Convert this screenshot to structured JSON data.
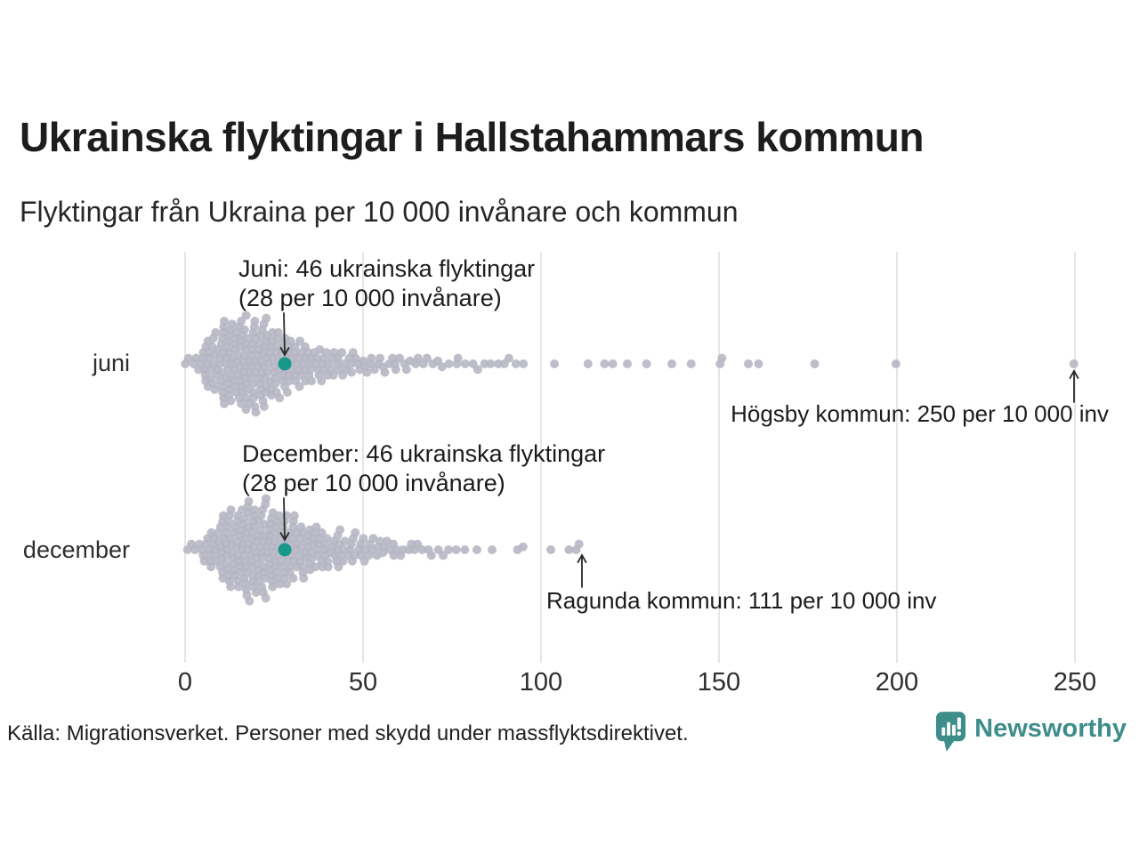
{
  "header": {
    "title": "Ukrainska flyktingar i Hallstahammars kommun",
    "subtitle": "Flyktingar från Ukraina per 10 000 invånare och kommun"
  },
  "chart_data": {
    "type": "beeswarm",
    "title": "Ukrainska flyktingar i Hallstahammars kommun",
    "subtitle": "Flyktingar från Ukraina per 10 000 invånare och kommun",
    "unit": "flyktingar från Ukraina per 10 000 invånare, en punkt per kommun",
    "x_axis": {
      "min": 0,
      "max": 255,
      "ticks": [
        0,
        50,
        100,
        150,
        200,
        250
      ],
      "gridlines": "vertical"
    },
    "legend": "none",
    "rows": [
      {
        "label": "juni",
        "highlight": {
          "municipality": "Hallstahammars kommun",
          "refugees": 46,
          "value_per_10000": 28
        },
        "annotation": {
          "line1": "Juni: 46 ukrainska flyktingar",
          "line2": "(28 per 10 000 invånare)"
        },
        "max_annotation": {
          "text": "Högsby kommun: 250 per 10 000 inv",
          "municipality": "Högsby kommun",
          "value_per_10000": 250
        },
        "distribution_estimate": {
          "bin_width": 5,
          "start": 0,
          "counts": [
            6,
            26,
            40,
            42,
            38,
            28,
            20,
            15,
            11,
            9,
            7,
            6,
            5,
            4,
            3
          ]
        },
        "tail_values_estimate": [
          76,
          77,
          79,
          81,
          82,
          84,
          86,
          88,
          90,
          91,
          93,
          95,
          104,
          113,
          118,
          120,
          124,
          130,
          137,
          142,
          150,
          151,
          158,
          161,
          177,
          200,
          250
        ]
      },
      {
        "label": "december",
        "highlight": {
          "municipality": "Hallstahammars kommun",
          "refugees": 46,
          "value_per_10000": 28
        },
        "annotation": {
          "line1": "December: 46 ukrainska flyktingar",
          "line2": "(28 per 10 000 invånare)"
        },
        "max_annotation": {
          "text": "Ragunda kommun: 111 per 10 000 inv",
          "municipality": "Ragunda kommun",
          "value_per_10000": 111
        },
        "distribution_estimate": {
          "bin_width": 5,
          "start": 0,
          "counts": [
            4,
            18,
            36,
            44,
            42,
            33,
            25,
            19,
            15,
            12,
            9,
            7,
            5,
            4,
            3,
            2
          ]
        },
        "tail_values_estimate": [
          82,
          86,
          93,
          95,
          103,
          108,
          110,
          111
        ]
      }
    ]
  },
  "footer": {
    "source": "Källa: Migrationsverket. Personer med skydd under massflyktsdirektivet.",
    "brand": "Newsworthy"
  },
  "colors": {
    "background": "#ffffff",
    "dot": "#b5b5c3",
    "highlight": "#18988a",
    "grid": "#dcdcdc",
    "text": "#1d1d1d",
    "arrow": "#2b2b2b",
    "brand_teal": "#3d8e8b"
  }
}
